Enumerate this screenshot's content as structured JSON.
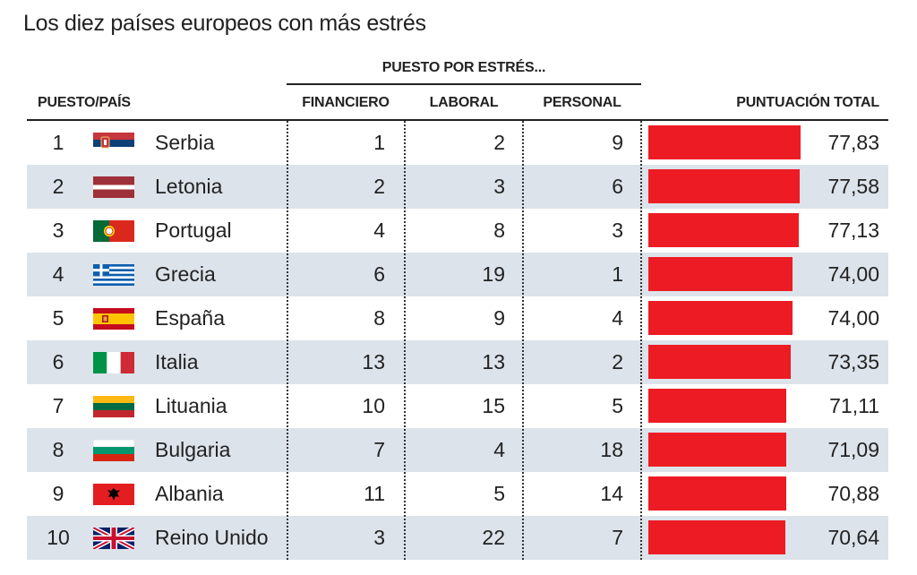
{
  "title": "Los diez países europeos con más estrés",
  "header": {
    "group": "PUESTO POR ESTRÉS...",
    "puesto": "PUESTO/PAÍS",
    "financiero": "FINANCIERO",
    "laboral": "LABORAL",
    "personal": "PERSONAL",
    "total": "PUNTUACIÓN TOTAL"
  },
  "colors": {
    "bar": "#ed1c24",
    "row_shade": "#dde3ea"
  },
  "rows": [
    {
      "rank": "1",
      "flag": "serbia-flag-icon",
      "country": "Serbia",
      "financiero": "1",
      "laboral": "2",
      "personal": "9",
      "total": "77,83"
    },
    {
      "rank": "2",
      "flag": "latvia-flag-icon",
      "country": "Letonia",
      "financiero": "2",
      "laboral": "3",
      "personal": "6",
      "total": "77,58"
    },
    {
      "rank": "3",
      "flag": "portugal-flag-icon",
      "country": "Portugal",
      "financiero": "4",
      "laboral": "8",
      "personal": "3",
      "total": "77,13"
    },
    {
      "rank": "4",
      "flag": "greece-flag-icon",
      "country": "Grecia",
      "financiero": "6",
      "laboral": "19",
      "personal": "1",
      "total": "74,00"
    },
    {
      "rank": "5",
      "flag": "spain-flag-icon",
      "country": "España",
      "financiero": "8",
      "laboral": "9",
      "personal": "4",
      "total": "74,00"
    },
    {
      "rank": "6",
      "flag": "italy-flag-icon",
      "country": "Italia",
      "financiero": "13",
      "laboral": "13",
      "personal": "2",
      "total": "73,35"
    },
    {
      "rank": "7",
      "flag": "lithuania-flag-icon",
      "country": "Lituania",
      "financiero": "10",
      "laboral": "15",
      "personal": "5",
      "total": "71,11"
    },
    {
      "rank": "8",
      "flag": "bulgaria-flag-icon",
      "country": "Bulgaria",
      "financiero": "7",
      "laboral": "4",
      "personal": "18",
      "total": "71,09"
    },
    {
      "rank": "9",
      "flag": "albania-flag-icon",
      "country": "Albania",
      "financiero": "11",
      "laboral": "5",
      "personal": "14",
      "total": "70,88"
    },
    {
      "rank": "10",
      "flag": "uk-flag-icon",
      "country": "Reino Unido",
      "financiero": "3",
      "laboral": "22",
      "personal": "7",
      "total": "70,64"
    }
  ],
  "chart_data": {
    "type": "table",
    "title": "Los diez países europeos con más estrés",
    "columns": [
      "PUESTO/PAÍS",
      "FINANCIERO",
      "LABORAL",
      "PERSONAL",
      "PUNTUACIÓN TOTAL"
    ],
    "categories": [
      "Serbia",
      "Letonia",
      "Portugal",
      "Grecia",
      "España",
      "Italia",
      "Lituania",
      "Bulgaria",
      "Albania",
      "Reino Unido"
    ],
    "series": [
      {
        "name": "FINANCIERO",
        "values": [
          1,
          2,
          4,
          6,
          8,
          13,
          10,
          7,
          11,
          3
        ]
      },
      {
        "name": "LABORAL",
        "values": [
          2,
          3,
          8,
          19,
          9,
          13,
          15,
          4,
          5,
          22
        ]
      },
      {
        "name": "PERSONAL",
        "values": [
          9,
          6,
          3,
          1,
          4,
          2,
          5,
          18,
          14,
          7
        ]
      },
      {
        "name": "PUNTUACIÓN TOTAL",
        "values": [
          77.83,
          77.58,
          77.13,
          74.0,
          74.0,
          73.35,
          71.11,
          71.09,
          70.88,
          70.64
        ]
      }
    ]
  }
}
